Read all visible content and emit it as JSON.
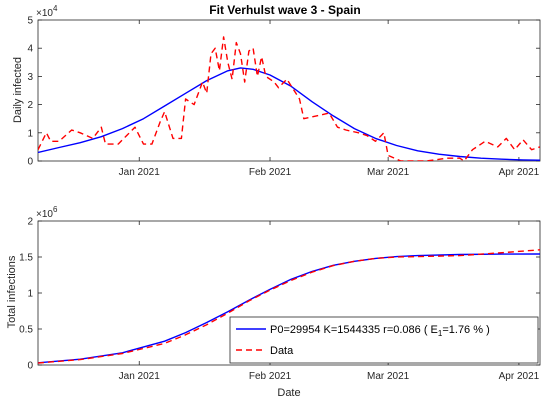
{
  "figure": {
    "top_title": "Fit Verhulst wave 3 - Spain"
  },
  "chart_data": [
    {
      "type": "line",
      "title": "Fit Verhulst wave 3 - Spain",
      "xlabel": "",
      "ylabel": "Daily infected",
      "x_axis_type": "date",
      "xlim": [
        "2020-12-08",
        "2021-04-06"
      ],
      "ylim": [
        0,
        50000
      ],
      "y_exponent_label": "×10",
      "y_exponent_power": "4",
      "yticks": [
        0,
        10000,
        20000,
        30000,
        40000,
        50000
      ],
      "yticklabels": [
        "0",
        "1",
        "2",
        "3",
        "4",
        "5"
      ],
      "xticks": [
        "2021-01-01",
        "2021-02-01",
        "2021-03-01",
        "2021-04-01"
      ],
      "xticklabels": [
        "Jan 2021",
        "Feb 2021",
        "Mar 2021",
        "Apr 2021"
      ],
      "grid": false,
      "colors": {
        "fit": "#0000ff",
        "data": "#ff0000"
      },
      "series": [
        {
          "kind": "fit",
          "style": "solid",
          "x": [
            "2020-12-08",
            "2020-12-13",
            "2020-12-18",
            "2020-12-23",
            "2020-12-28",
            "2021-01-02",
            "2021-01-07",
            "2021-01-12",
            "2021-01-17",
            "2021-01-22",
            "2021-01-25",
            "2021-01-28",
            "2021-02-01",
            "2021-02-06",
            "2021-02-11",
            "2021-02-16",
            "2021-02-21",
            "2021-02-26",
            "2021-03-03",
            "2021-03-08",
            "2021-03-13",
            "2021-03-18",
            "2021-03-23",
            "2021-03-28",
            "2021-04-02",
            "2021-04-06"
          ],
          "values": [
            3000,
            4800,
            6500,
            8600,
            11500,
            15000,
            19500,
            24000,
            28500,
            32000,
            33000,
            32500,
            30500,
            26500,
            21000,
            16000,
            11500,
            8000,
            5500,
            3600,
            2400,
            1600,
            1000,
            650,
            400,
            300
          ]
        },
        {
          "kind": "data",
          "style": "dashed",
          "x": [
            "2020-12-08",
            "2020-12-10",
            "2020-12-11",
            "2020-12-13",
            "2020-12-16",
            "2020-12-18",
            "2020-12-21",
            "2020-12-23",
            "2020-12-24",
            "2020-12-27",
            "2020-12-29",
            "2020-12-31",
            "2021-01-02",
            "2021-01-04",
            "2021-01-06",
            "2021-01-07",
            "2021-01-09",
            "2021-01-11",
            "2021-01-12",
            "2021-01-14",
            "2021-01-16",
            "2021-01-17",
            "2021-01-18",
            "2021-01-19",
            "2021-01-20",
            "2021-01-21",
            "2021-01-22",
            "2021-01-23",
            "2021-01-24",
            "2021-01-25",
            "2021-01-26",
            "2021-01-27",
            "2021-01-28",
            "2021-01-29",
            "2021-01-30",
            "2021-01-31",
            "2021-02-02",
            "2021-02-03",
            "2021-02-05",
            "2021-02-08",
            "2021-02-09",
            "2021-02-12",
            "2021-02-15",
            "2021-02-17",
            "2021-02-19",
            "2021-02-22",
            "2021-02-24",
            "2021-02-26",
            "2021-02-28",
            "2021-03-01",
            "2021-03-04",
            "2021-03-10",
            "2021-03-15",
            "2021-03-18",
            "2021-03-19",
            "2021-03-21",
            "2021-03-24",
            "2021-03-27",
            "2021-03-29",
            "2021-03-31",
            "2021-04-02",
            "2021-04-04",
            "2021-04-06"
          ],
          "values": [
            4000,
            10000,
            7000,
            7000,
            11000,
            10000,
            8000,
            12000,
            6000,
            6000,
            9000,
            12000,
            6000,
            6000,
            14000,
            17500,
            8000,
            8000,
            22000,
            20000,
            28000,
            24000,
            38000,
            40000,
            32000,
            44000,
            35000,
            29000,
            42000,
            38000,
            28000,
            39000,
            40000,
            30000,
            37000,
            30000,
            28000,
            26000,
            29000,
            22000,
            15000,
            16000,
            17000,
            12000,
            11000,
            10000,
            9000,
            7000,
            10000,
            2000,
            0,
            0,
            1000,
            1000,
            0,
            4000,
            7000,
            5000,
            8000,
            4000,
            7500,
            4000,
            5000
          ]
        }
      ]
    },
    {
      "type": "line",
      "title": "",
      "xlabel": "Date",
      "ylabel": "Total infections",
      "x_axis_type": "date",
      "xlim": [
        "2020-12-08",
        "2021-04-06"
      ],
      "ylim": [
        0,
        2000000
      ],
      "y_exponent_label": "×10",
      "y_exponent_power": "6",
      "yticks": [
        0,
        500000,
        1000000,
        1500000,
        2000000
      ],
      "yticklabels": [
        "0",
        "0.5",
        "1",
        "1.5",
        "2"
      ],
      "xticks": [
        "2021-01-01",
        "2021-02-01",
        "2021-03-01",
        "2021-04-01"
      ],
      "xticklabels": [
        "Jan 2021",
        "Feb 2021",
        "Mar 2021",
        "Apr 2021"
      ],
      "grid": false,
      "legend_position": "bottom-right",
      "colors": {
        "fit": "#0000ff",
        "data": "#ff0000"
      },
      "legend": {
        "fit_text": "P0=29954  K=1544335  r=0.086  ( E",
        "fit_sub": "1",
        "fit_text_after": "=1.76 % )",
        "data_text": "Data"
      },
      "series": [
        {
          "kind": "fit",
          "style": "solid",
          "x": [
            "2020-12-08",
            "2020-12-18",
            "2020-12-28",
            "2021-01-07",
            "2021-01-12",
            "2021-01-17",
            "2021-01-22",
            "2021-01-27",
            "2021-02-01",
            "2021-02-06",
            "2021-02-11",
            "2021-02-16",
            "2021-02-21",
            "2021-02-26",
            "2021-03-03",
            "2021-03-08",
            "2021-03-18",
            "2021-03-28",
            "2021-04-06"
          ],
          "values": [
            30000,
            80000,
            170000,
            330000,
            450000,
            590000,
            740000,
            900000,
            1050000,
            1190000,
            1300000,
            1385000,
            1440000,
            1480000,
            1505000,
            1520000,
            1535000,
            1540000,
            1542000
          ]
        },
        {
          "kind": "data",
          "style": "dashed",
          "x": [
            "2020-12-08",
            "2020-12-18",
            "2020-12-28",
            "2021-01-07",
            "2021-01-12",
            "2021-01-17",
            "2021-01-22",
            "2021-01-27",
            "2021-02-01",
            "2021-02-06",
            "2021-02-11",
            "2021-02-16",
            "2021-02-21",
            "2021-02-26",
            "2021-03-03",
            "2021-03-08",
            "2021-03-18",
            "2021-03-28",
            "2021-04-06"
          ],
          "values": [
            28000,
            75000,
            160000,
            300000,
            420000,
            560000,
            720000,
            890000,
            1040000,
            1175000,
            1290000,
            1380000,
            1440000,
            1480000,
            1500000,
            1505000,
            1520000,
            1560000,
            1600000
          ]
        }
      ]
    }
  ]
}
